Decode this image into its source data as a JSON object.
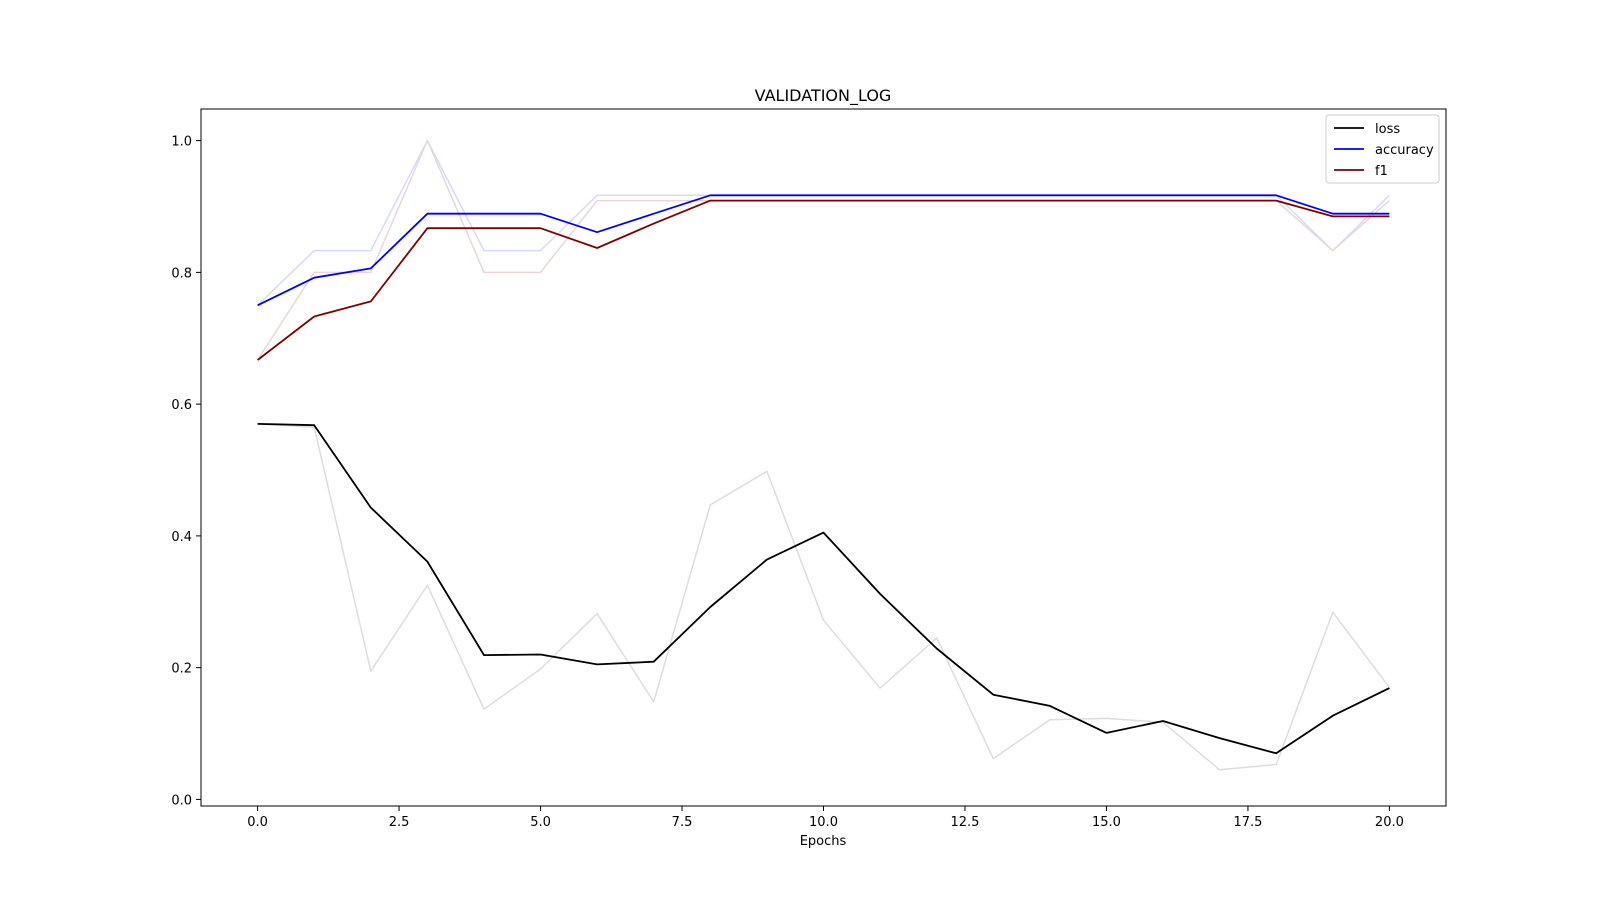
{
  "chart_data": {
    "type": "line",
    "title": "VALIDATION_LOG",
    "xlabel": "Epochs",
    "ylabel": "",
    "xlim": [
      -1,
      21
    ],
    "ylim": [
      -0.01,
      1.048
    ],
    "xticks": [
      0.0,
      2.5,
      5.0,
      7.5,
      10.0,
      12.5,
      15.0,
      17.5,
      20.0
    ],
    "xtick_labels": [
      "0.0",
      "2.5",
      "5.0",
      "7.5",
      "10.0",
      "12.5",
      "15.0",
      "17.5",
      "20.0"
    ],
    "yticks": [
      0.0,
      0.2,
      0.4,
      0.6,
      0.8,
      1.0
    ],
    "ytick_labels": [
      "0.0",
      "0.2",
      "0.4",
      "0.6",
      "0.8",
      "1.0"
    ],
    "grid": false,
    "legend_position": "top-right",
    "x": [
      0,
      1,
      2,
      3,
      4,
      5,
      6,
      7,
      8,
      9,
      10,
      11,
      12,
      13,
      14,
      15,
      16,
      17,
      18,
      19,
      20
    ],
    "series": [
      {
        "name": "loss",
        "color": "#000000",
        "values": [
          0.57,
          0.568,
          0.443,
          0.361,
          0.219,
          0.22,
          0.205,
          0.209,
          0.292,
          0.364,
          0.405,
          0.312,
          0.229,
          0.159,
          0.142,
          0.101,
          0.119,
          0.093,
          0.07,
          0.127,
          0.169
        ]
      },
      {
        "name": "accuracy",
        "color": "#0000ff",
        "values": [
          0.75,
          0.792,
          0.806,
          0.889,
          0.889,
          0.889,
          0.861,
          0.889,
          0.917,
          0.917,
          0.917,
          0.917,
          0.917,
          0.917,
          0.917,
          0.917,
          0.917,
          0.917,
          0.917,
          0.889,
          0.889
        ]
      },
      {
        "name": "f1",
        "color": "#800000",
        "values": [
          0.667,
          0.733,
          0.756,
          0.867,
          0.867,
          0.867,
          0.837,
          0.874,
          0.909,
          0.909,
          0.909,
          0.909,
          0.909,
          0.909,
          0.909,
          0.909,
          0.909,
          0.909,
          0.909,
          0.885,
          0.885
        ]
      }
    ],
    "raw_series": [
      {
        "color": "#dddddd",
        "values": [
          0.57,
          0.565,
          0.195,
          0.325,
          0.137,
          0.198,
          0.282,
          0.148,
          0.447,
          0.498,
          0.272,
          0.169,
          0.245,
          0.062,
          0.121,
          0.123,
          0.117,
          0.045,
          0.053,
          0.284,
          0.17
        ]
      },
      {
        "color": "#d8d8ff",
        "values": [
          0.75,
          0.833,
          0.833,
          1.0,
          0.833,
          0.833,
          0.917,
          0.917,
          0.917,
          0.917,
          0.917,
          0.917,
          0.917,
          0.917,
          0.917,
          0.917,
          0.917,
          0.917,
          0.917,
          0.833,
          0.917
        ]
      },
      {
        "color": "#ead6d6",
        "values": [
          0.667,
          0.8,
          0.8,
          1.0,
          0.8,
          0.8,
          0.909,
          0.909,
          0.909,
          0.909,
          0.909,
          0.909,
          0.909,
          0.909,
          0.909,
          0.909,
          0.909,
          0.909,
          0.909,
          0.833,
          0.909
        ]
      }
    ]
  }
}
